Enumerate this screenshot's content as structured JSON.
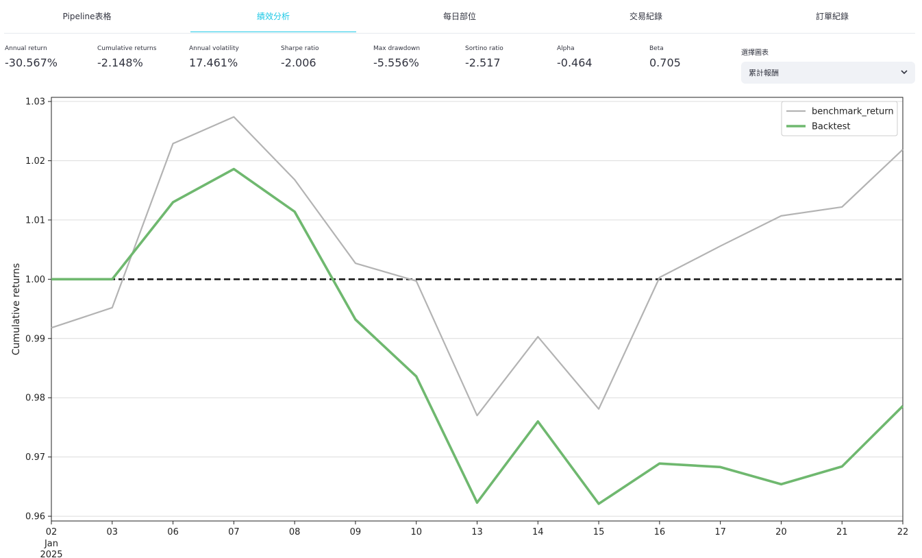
{
  "tabs": [
    {
      "label": "Pipeline表格",
      "active": false
    },
    {
      "label": "績效分析",
      "active": true
    },
    {
      "label": "每日部位",
      "active": false
    },
    {
      "label": "交易紀錄",
      "active": false
    },
    {
      "label": "訂單紀錄",
      "active": false
    }
  ],
  "metrics": [
    {
      "label": "Annual return",
      "value": "-30.567%"
    },
    {
      "label": "Cumulative returns",
      "value": "-2.148%"
    },
    {
      "label": "Annual volatility",
      "value": "17.461%"
    },
    {
      "label": "Sharpe ratio",
      "value": "-2.006"
    },
    {
      "label": "Max drawdown",
      "value": "-5.556%"
    },
    {
      "label": "Sortino ratio",
      "value": "-2.517"
    },
    {
      "label": "Alpha",
      "value": "-0.464"
    },
    {
      "label": "Beta",
      "value": "0.705"
    }
  ],
  "chart_select": {
    "label": "選擇圖表",
    "value": "累計報酬"
  },
  "colors": {
    "accent": "#1ec8e6",
    "benchmark": "#b3b3b3",
    "backtest": "#6fb86f",
    "baseline": "#111111"
  },
  "icons": {
    "dropdown": "chevron-down-icon"
  },
  "chart_data": {
    "type": "line",
    "x": [
      "02",
      "03",
      "06",
      "07",
      "08",
      "09",
      "10",
      "13",
      "14",
      "15",
      "16",
      "17",
      "20",
      "21",
      "22"
    ],
    "x_extra_labels": [
      "Jan",
      "2025"
    ],
    "series": [
      {
        "name": "benchmark_return",
        "color": "#b3b3b3",
        "values": [
          0.9918,
          0.9952,
          1.0229,
          1.0274,
          1.0168,
          1.0027,
          0.9997,
          0.977,
          0.9903,
          0.9781,
          1.0003,
          1.0056,
          1.0107,
          1.0122,
          1.0219
        ]
      },
      {
        "name": "Backtest",
        "color": "#6fb86f",
        "values": [
          1.0,
          1.0,
          1.013,
          1.0186,
          1.0114,
          0.9932,
          0.9836,
          0.9623,
          0.976,
          0.9621,
          0.9689,
          0.9683,
          0.9654,
          0.9684,
          0.9786
        ]
      }
    ],
    "baseline": 1.0,
    "ylabel": "Cumulative returns",
    "yticks": [
      0.96,
      0.97,
      0.98,
      0.99,
      1.0,
      1.01,
      1.02,
      1.03
    ],
    "ytick_labels": [
      "0.96",
      "0.97",
      "0.98",
      "0.99",
      "1.00",
      "1.01",
      "1.02",
      "1.03"
    ],
    "ylim": [
      0.9592,
      1.0307
    ],
    "grid": true,
    "legend_position": "top-right"
  }
}
